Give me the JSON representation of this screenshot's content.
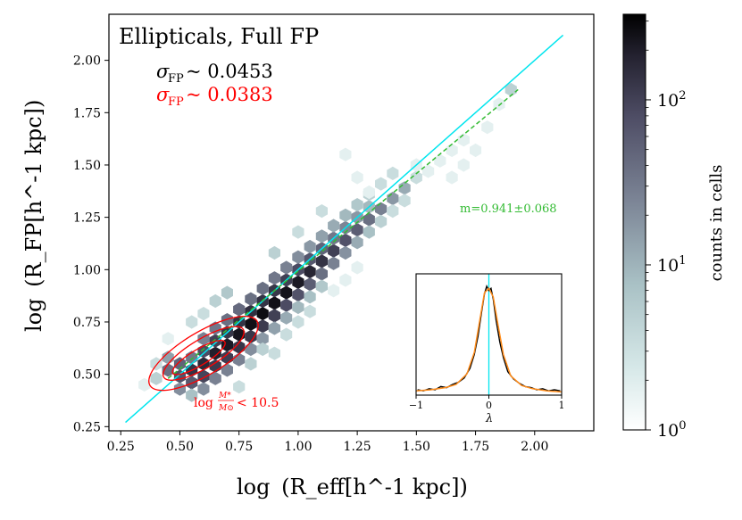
{
  "chart_data": {
    "type": "hexbin",
    "title": "Ellipticals, Full FP",
    "xlabel_main": "log",
    "xlabel_tail": "(R_eff[h^-1 kpc])",
    "ylabel_main": "log",
    "ylabel_tail": "(R_FP[h^-1 kpc])",
    "xlim": [
      0.2,
      2.25
    ],
    "ylim": [
      0.23,
      2.22
    ],
    "x_ticks": [
      0.25,
      0.5,
      0.75,
      1.0,
      1.25,
      1.5,
      1.75,
      2.0
    ],
    "x_tick_labels": [
      "0.25",
      "0.50",
      "0.75",
      "1.00",
      "1.25",
      "1.50",
      "1.75",
      "2.00"
    ],
    "y_ticks": [
      0.25,
      0.5,
      0.75,
      1.0,
      1.25,
      1.5,
      1.75,
      2.0
    ],
    "y_tick_labels": [
      "0.25",
      "0.50",
      "0.75",
      "1.00",
      "1.25",
      "1.50",
      "1.75",
      "2.00"
    ],
    "scatter_annotations": {
      "sigma_label": "σ",
      "sigma_sub": "FP",
      "full_value": "~ 0.0453",
      "full_color": "#000000",
      "low_mass_value": "~ 0.0383",
      "low_mass_color": "#ff0000"
    },
    "mass_cut_label": {
      "prefix": "log",
      "num": "M*",
      "den": "M⊙",
      "suffix": "< 10.5",
      "color": "#ff0000"
    },
    "one_to_one_line": {
      "x": [
        0.27,
        2.12
      ],
      "y": [
        0.27,
        2.12
      ],
      "color": "#00e5ee"
    },
    "fit_line": {
      "x": [
        0.45,
        1.93
      ],
      "y": [
        0.48,
        1.86
      ],
      "color": "#33bb33",
      "label": "m=0.941±0.068"
    },
    "hexbins": [
      {
        "x": 0.5,
        "y": 0.49,
        "c": 60
      },
      {
        "x": 0.55,
        "y": 0.52,
        "c": 120
      },
      {
        "x": 0.6,
        "y": 0.55,
        "c": 150
      },
      {
        "x": 0.65,
        "y": 0.6,
        "c": 180
      },
      {
        "x": 0.7,
        "y": 0.64,
        "c": 200
      },
      {
        "x": 0.75,
        "y": 0.69,
        "c": 220
      },
      {
        "x": 0.8,
        "y": 0.74,
        "c": 250
      },
      {
        "x": 0.85,
        "y": 0.79,
        "c": 260
      },
      {
        "x": 0.9,
        "y": 0.84,
        "c": 240
      },
      {
        "x": 0.95,
        "y": 0.89,
        "c": 230
      },
      {
        "x": 1.0,
        "y": 0.94,
        "c": 200
      },
      {
        "x": 1.05,
        "y": 0.99,
        "c": 160
      },
      {
        "x": 1.1,
        "y": 1.04,
        "c": 120
      },
      {
        "x": 1.15,
        "y": 1.09,
        "c": 90
      },
      {
        "x": 1.2,
        "y": 1.14,
        "c": 60
      },
      {
        "x": 1.25,
        "y": 1.19,
        "c": 45
      },
      {
        "x": 1.3,
        "y": 1.24,
        "c": 30
      },
      {
        "x": 1.35,
        "y": 1.29,
        "c": 20
      },
      {
        "x": 1.4,
        "y": 1.34,
        "c": 12
      },
      {
        "x": 1.45,
        "y": 1.39,
        "c": 8
      },
      {
        "x": 0.5,
        "y": 0.55,
        "c": 40
      },
      {
        "x": 0.55,
        "y": 0.46,
        "c": 50
      },
      {
        "x": 0.6,
        "y": 0.61,
        "c": 70
      },
      {
        "x": 0.6,
        "y": 0.49,
        "c": 80
      },
      {
        "x": 0.65,
        "y": 0.66,
        "c": 90
      },
      {
        "x": 0.65,
        "y": 0.54,
        "c": 100
      },
      {
        "x": 0.7,
        "y": 0.7,
        "c": 110
      },
      {
        "x": 0.7,
        "y": 0.58,
        "c": 95
      },
      {
        "x": 0.75,
        "y": 0.75,
        "c": 120
      },
      {
        "x": 0.75,
        "y": 0.63,
        "c": 110
      },
      {
        "x": 0.8,
        "y": 0.8,
        "c": 130
      },
      {
        "x": 0.8,
        "y": 0.68,
        "c": 110
      },
      {
        "x": 0.85,
        "y": 0.85,
        "c": 120
      },
      {
        "x": 0.85,
        "y": 0.73,
        "c": 100
      },
      {
        "x": 0.9,
        "y": 0.9,
        "c": 110
      },
      {
        "x": 0.9,
        "y": 0.78,
        "c": 90
      },
      {
        "x": 0.95,
        "y": 0.95,
        "c": 90
      },
      {
        "x": 0.95,
        "y": 0.83,
        "c": 70
      },
      {
        "x": 1.0,
        "y": 1.0,
        "c": 70
      },
      {
        "x": 1.0,
        "y": 0.88,
        "c": 60
      },
      {
        "x": 1.05,
        "y": 1.05,
        "c": 55
      },
      {
        "x": 1.05,
        "y": 0.93,
        "c": 45
      },
      {
        "x": 1.1,
        "y": 1.1,
        "c": 40
      },
      {
        "x": 1.1,
        "y": 0.98,
        "c": 30
      },
      {
        "x": 1.15,
        "y": 1.15,
        "c": 25
      },
      {
        "x": 1.15,
        "y": 1.03,
        "c": 20
      },
      {
        "x": 1.2,
        "y": 1.2,
        "c": 18
      },
      {
        "x": 1.2,
        "y": 1.08,
        "c": 14
      },
      {
        "x": 1.25,
        "y": 1.25,
        "c": 12
      },
      {
        "x": 1.25,
        "y": 1.13,
        "c": 8
      },
      {
        "x": 1.3,
        "y": 1.3,
        "c": 6
      },
      {
        "x": 1.3,
        "y": 1.18,
        "c": 5
      },
      {
        "x": 0.45,
        "y": 0.52,
        "c": 30
      },
      {
        "x": 0.45,
        "y": 0.58,
        "c": 10
      },
      {
        "x": 0.5,
        "y": 0.43,
        "c": 15
      },
      {
        "x": 0.55,
        "y": 0.58,
        "c": 25
      },
      {
        "x": 0.55,
        "y": 0.4,
        "c": 5
      },
      {
        "x": 0.6,
        "y": 0.67,
        "c": 20
      },
      {
        "x": 0.6,
        "y": 0.43,
        "c": 15
      },
      {
        "x": 0.65,
        "y": 0.72,
        "c": 25
      },
      {
        "x": 0.65,
        "y": 0.48,
        "c": 20
      },
      {
        "x": 0.7,
        "y": 0.76,
        "c": 30
      },
      {
        "x": 0.7,
        "y": 0.52,
        "c": 20
      },
      {
        "x": 0.75,
        "y": 0.81,
        "c": 35
      },
      {
        "x": 0.75,
        "y": 0.57,
        "c": 20
      },
      {
        "x": 0.8,
        "y": 0.86,
        "c": 30
      },
      {
        "x": 0.8,
        "y": 0.62,
        "c": 15
      },
      {
        "x": 0.85,
        "y": 0.91,
        "c": 30
      },
      {
        "x": 0.85,
        "y": 0.67,
        "c": 12
      },
      {
        "x": 0.9,
        "y": 0.96,
        "c": 25
      },
      {
        "x": 0.9,
        "y": 0.72,
        "c": 10
      },
      {
        "x": 0.95,
        "y": 1.01,
        "c": 20
      },
      {
        "x": 0.95,
        "y": 0.77,
        "c": 8
      },
      {
        "x": 1.0,
        "y": 1.06,
        "c": 15
      },
      {
        "x": 1.0,
        "y": 0.82,
        "c": 6
      },
      {
        "x": 1.05,
        "y": 1.11,
        "c": 12
      },
      {
        "x": 1.05,
        "y": 0.87,
        "c": 5
      },
      {
        "x": 1.1,
        "y": 1.16,
        "c": 10
      },
      {
        "x": 1.1,
        "y": 0.92,
        "c": 4
      },
      {
        "x": 1.15,
        "y": 1.21,
        "c": 8
      },
      {
        "x": 1.2,
        "y": 1.26,
        "c": 6
      },
      {
        "x": 1.25,
        "y": 1.31,
        "c": 4
      },
      {
        "x": 1.3,
        "y": 1.36,
        "c": 3
      },
      {
        "x": 1.35,
        "y": 1.23,
        "c": 3
      },
      {
        "x": 1.35,
        "y": 1.41,
        "c": 2
      },
      {
        "x": 1.4,
        "y": 1.28,
        "c": 2
      },
      {
        "x": 1.4,
        "y": 1.46,
        "c": 2
      },
      {
        "x": 1.45,
        "y": 1.33,
        "c": 2
      },
      {
        "x": 1.5,
        "y": 1.44,
        "c": 2
      },
      {
        "x": 1.55,
        "y": 1.47,
        "c": 1
      },
      {
        "x": 1.6,
        "y": 1.52,
        "c": 1
      },
      {
        "x": 1.5,
        "y": 1.5,
        "c": 1
      },
      {
        "x": 1.65,
        "y": 1.57,
        "c": 1
      },
      {
        "x": 1.7,
        "y": 1.62,
        "c": 1
      },
      {
        "x": 1.75,
        "y": 1.57,
        "c": 1
      },
      {
        "x": 1.7,
        "y": 1.5,
        "c": 1
      },
      {
        "x": 1.8,
        "y": 1.68,
        "c": 1
      },
      {
        "x": 1.9,
        "y": 1.86,
        "c": 3
      },
      {
        "x": 1.85,
        "y": 1.79,
        "c": 1
      },
      {
        "x": 1.2,
        "y": 1.55,
        "c": 1
      },
      {
        "x": 1.3,
        "y": 1.37,
        "c": 1
      },
      {
        "x": 1.25,
        "y": 1.44,
        "c": 1
      },
      {
        "x": 0.55,
        "y": 0.75,
        "c": 2
      },
      {
        "x": 0.45,
        "y": 0.67,
        "c": 1
      },
      {
        "x": 0.4,
        "y": 0.55,
        "c": 2
      },
      {
        "x": 0.75,
        "y": 0.44,
        "c": 2
      },
      {
        "x": 0.8,
        "y": 0.55,
        "c": 3
      },
      {
        "x": 0.85,
        "y": 0.62,
        "c": 3
      },
      {
        "x": 0.95,
        "y": 0.69,
        "c": 2
      },
      {
        "x": 1.0,
        "y": 0.75,
        "c": 2
      },
      {
        "x": 1.05,
        "y": 0.8,
        "c": 2
      },
      {
        "x": 1.15,
        "y": 0.9,
        "c": 1
      },
      {
        "x": 1.2,
        "y": 0.95,
        "c": 1
      },
      {
        "x": 1.25,
        "y": 1.01,
        "c": 1
      },
      {
        "x": 0.65,
        "y": 0.85,
        "c": 3
      },
      {
        "x": 0.7,
        "y": 0.89,
        "c": 4
      },
      {
        "x": 0.9,
        "y": 1.08,
        "c": 3
      },
      {
        "x": 1.0,
        "y": 1.18,
        "c": 2
      },
      {
        "x": 1.1,
        "y": 1.28,
        "c": 2
      },
      {
        "x": 0.6,
        "y": 0.79,
        "c": 2
      },
      {
        "x": 0.9,
        "y": 0.6,
        "c": 2
      },
      {
        "x": 1.65,
        "y": 1.44,
        "c": 1
      },
      {
        "x": 0.4,
        "y": 0.48,
        "c": 3
      },
      {
        "x": 0.35,
        "y": 0.45,
        "c": 1
      }
    ],
    "colorbar": {
      "label": "counts in cells",
      "scale": "log",
      "range": [
        1,
        330
      ],
      "tick_base": "10",
      "tick_exponents": [
        "0",
        "1",
        "2"
      ],
      "tick_values": [
        1,
        10,
        100
      ]
    },
    "inset": {
      "type": "line",
      "xlabel": "λ",
      "xlim": [
        -1,
        1
      ],
      "x_tick_labels": [
        "−1",
        "0",
        "1"
      ],
      "histogram_color": "#000000",
      "fit_color": "#ff8c1a",
      "zero_line_color": "#00e5ee",
      "fit_curve": {
        "x": [
          -1,
          -0.8,
          -0.6,
          -0.45,
          -0.3,
          -0.2,
          -0.12,
          -0.06,
          0,
          0.06,
          0.12,
          0.2,
          0.3,
          0.45,
          0.6,
          0.8,
          1
        ],
        "y": [
          0.04,
          0.05,
          0.07,
          0.1,
          0.2,
          0.4,
          0.72,
          0.96,
          1.0,
          0.92,
          0.68,
          0.38,
          0.18,
          0.09,
          0.06,
          0.04,
          0.03
        ]
      },
      "histogram": {
        "x": [
          -0.98,
          -0.9,
          -0.82,
          -0.74,
          -0.66,
          -0.58,
          -0.5,
          -0.42,
          -0.34,
          -0.26,
          -0.2,
          -0.15,
          -0.1,
          -0.06,
          -0.03,
          0,
          0.03,
          0.06,
          0.1,
          0.15,
          0.2,
          0.26,
          0.34,
          0.42,
          0.5,
          0.58,
          0.66,
          0.74,
          0.82,
          0.9,
          0.98
        ],
        "y": [
          0.05,
          0.04,
          0.06,
          0.05,
          0.08,
          0.07,
          0.1,
          0.12,
          0.16,
          0.25,
          0.38,
          0.55,
          0.78,
          0.95,
          1.02,
          0.98,
          1.0,
          0.9,
          0.7,
          0.5,
          0.35,
          0.22,
          0.15,
          0.11,
          0.08,
          0.07,
          0.05,
          0.06,
          0.04,
          0.05,
          0.04
        ]
      }
    }
  }
}
